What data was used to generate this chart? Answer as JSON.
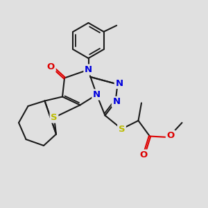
{
  "bg_color": "#e0e0e0",
  "bond_color": "#1a1a1a",
  "n_color": "#0000dd",
  "o_color": "#dd0000",
  "s_color": "#bbbb00",
  "lw": 1.5,
  "fs": 9.5,
  "xlim": [
    0,
    10
  ],
  "ylim": [
    0,
    10
  ]
}
